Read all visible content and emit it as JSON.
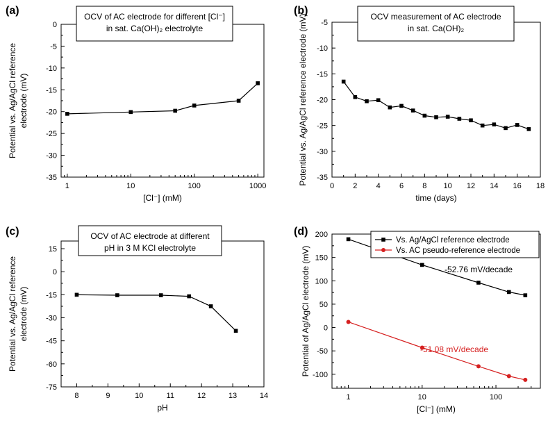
{
  "chart_data": [
    {
      "id": "a",
      "type": "line",
      "panel_label": "(a)",
      "title_lines": [
        "OCV of AC electrode for different [Cl⁻]",
        "in sat. Ca(OH)₂ electrolyte"
      ],
      "xlabel": "[Cl⁻] (mM)",
      "ylabel_lines": [
        "Potential vs. Ag/AgCl reference",
        "electrode (mV)"
      ],
      "xscale": "log",
      "xlim": [
        0.8,
        1250
      ],
      "ylim": [
        -35,
        0
      ],
      "xticks": [
        1,
        10,
        100,
        1000
      ],
      "xtick_labels": [
        "1",
        "10",
        "100",
        "1000"
      ],
      "yticks": [
        -35,
        -30,
        -25,
        -20,
        -15,
        -10,
        -5,
        0
      ],
      "ytick_labels": [
        "-35",
        "-30",
        "-25",
        "-20",
        "-15",
        "-10",
        "-5",
        "0"
      ],
      "grid": false,
      "series": [
        {
          "color": "#000000",
          "marker": "square",
          "x": [
            1,
            10,
            50,
            100,
            500,
            1000
          ],
          "y": [
            -20.5,
            -20.1,
            -19.8,
            -18.6,
            -17.5,
            -13.5
          ]
        }
      ]
    },
    {
      "id": "b",
      "type": "line",
      "panel_label": "(b)",
      "title_lines": [
        "OCV measurement of AC electrode",
        "in sat. Ca(OH)₂"
      ],
      "xlabel": "time (days)",
      "ylabel_lines": [
        "Potential vs. Ag/AgCl reference electrode (mV)"
      ],
      "xscale": "linear",
      "xlim": [
        0,
        18
      ],
      "ylim": [
        -35,
        -5
      ],
      "xticks": [
        0,
        2,
        4,
        6,
        8,
        10,
        12,
        14,
        16,
        18
      ],
      "xtick_labels": [
        "0",
        "2",
        "4",
        "6",
        "8",
        "10",
        "12",
        "14",
        "16",
        "18"
      ],
      "yticks": [
        -35,
        -30,
        -25,
        -20,
        -15,
        -10,
        -5
      ],
      "ytick_labels": [
        "-35",
        "-30",
        "-25",
        "-20",
        "-15",
        "-10",
        "-5"
      ],
      "grid": false,
      "series": [
        {
          "color": "#000000",
          "marker": "square",
          "x": [
            1,
            2,
            3,
            4,
            5,
            6,
            7,
            8,
            9,
            10,
            11,
            12,
            13,
            14,
            15,
            16,
            17
          ],
          "y": [
            -16.5,
            -19.5,
            -20.3,
            -20.1,
            -21.5,
            -21.2,
            -22.1,
            -23.1,
            -23.4,
            -23.3,
            -23.7,
            -24.0,
            -25.0,
            -24.8,
            -25.5,
            -24.9,
            -25.7
          ]
        }
      ]
    },
    {
      "id": "c",
      "type": "line",
      "panel_label": "(c)",
      "title_lines": [
        "OCV of AC electrode at different",
        "pH in 3 M KCl electrolyte"
      ],
      "xlabel": "pH",
      "ylabel_lines": [
        "Potential vs. Ag/AgCl reference",
        "electrode (mV)"
      ],
      "xscale": "linear",
      "xlim": [
        7.5,
        14
      ],
      "ylim": [
        -75,
        20
      ],
      "xticks": [
        8,
        9,
        10,
        11,
        12,
        13,
        14
      ],
      "xtick_labels": [
        "8",
        "9",
        "10",
        "11",
        "12",
        "13",
        "14"
      ],
      "yticks": [
        -75,
        -60,
        -45,
        -30,
        -15,
        0,
        15
      ],
      "ytick_labels": [
        "-75",
        "-60",
        "-45",
        "-30",
        "-15",
        "0",
        "15"
      ],
      "grid": false,
      "series": [
        {
          "color": "#000000",
          "marker": "square",
          "x": [
            8,
            9.3,
            10.7,
            11.6,
            12.3,
            13.1
          ],
          "y": [
            -15.0,
            -15.3,
            -15.3,
            -16.0,
            -22.5,
            -38.5
          ]
        }
      ]
    },
    {
      "id": "d",
      "type": "line",
      "panel_label": "(d)",
      "xlabel": "[Cl⁻] (mM)",
      "ylabel_lines": [
        "Potential of Ag/AgCl electrode (mV)"
      ],
      "xscale": "log",
      "xlim": [
        0.6,
        400
      ],
      "ylim": [
        -130,
        200
      ],
      "xticks": [
        1,
        10,
        100
      ],
      "xtick_labels": [
        "1",
        "10",
        "100"
      ],
      "yticks": [
        -100,
        -50,
        0,
        50,
        100,
        150,
        200
      ],
      "ytick_labels": [
        "-100",
        "-50",
        "0",
        "50",
        "100",
        "150",
        "200"
      ],
      "grid": false,
      "legend_placement": "top-right",
      "series": [
        {
          "name": "Vs. Ag/AgCl reference electrode",
          "color": "#000000",
          "marker": "square",
          "x": [
            1,
            10,
            58,
            150,
            250
          ],
          "y": [
            189,
            134,
            96,
            76,
            69
          ]
        },
        {
          "name": "Vs. AC pseudo-reference electrode",
          "color": "#d62020",
          "marker": "circle",
          "x": [
            1,
            10,
            58,
            150,
            250
          ],
          "y": [
            12,
            -43,
            -83,
            -104,
            -112
          ]
        }
      ],
      "annotations": [
        {
          "text": "-52.76 mV/decade",
          "color": "#000000"
        },
        {
          "text": "-51.08 mV/decade",
          "color": "#d62020"
        }
      ]
    }
  ]
}
